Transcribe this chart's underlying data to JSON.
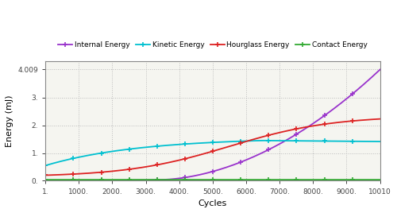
{
  "title": "",
  "xlabel": "Cycles",
  "ylabel": "Energy (mJ)",
  "xlim": [
    1,
    10010
  ],
  "ylim": [
    0.0,
    4.3
  ],
  "xticks": [
    1,
    1000,
    2000,
    3000,
    4000,
    5000,
    6000,
    7000,
    8000,
    9000,
    10010
  ],
  "xtick_labels": [
    "1.",
    "1000.",
    "2000.",
    "3000.",
    "4000.",
    "5000.",
    "6000.",
    "7000.",
    "8000.",
    "9000.",
    "10010"
  ],
  "yticks": [
    0.0,
    1.0,
    2.0,
    3.0,
    4.009
  ],
  "ytick_labels": [
    "0.",
    "1.",
    "2.",
    "3.",
    "4.009"
  ],
  "legend": [
    "Internal Energy",
    "Kinetic Energy",
    "Hourglass Energy",
    "Contact Energy"
  ],
  "colors": {
    "Internal Energy": "#9933cc",
    "Kinetic Energy": "#00c0d0",
    "Hourglass Energy": "#dd2222",
    "Contact Energy": "#33aa33"
  },
  "background_color": "#ffffff",
  "plot_bg_color": "#f5f5f0",
  "grid_color": "#bbbbbb"
}
